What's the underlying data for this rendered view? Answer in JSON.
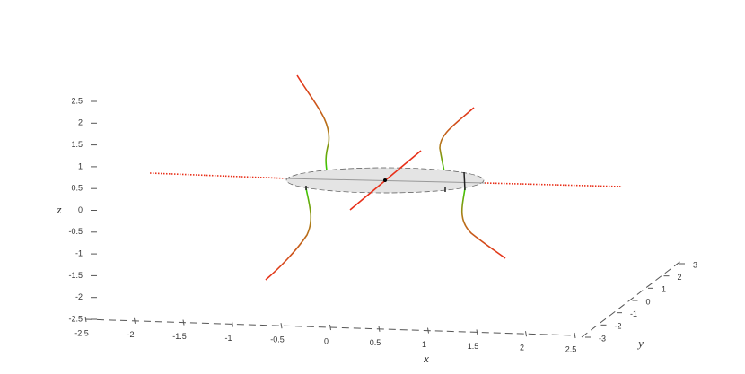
{
  "chart_data": {
    "type": "line3d",
    "xlabel": "x",
    "ylabel": "y",
    "zlabel": "z",
    "xlim": [
      -2.5,
      2.5
    ],
    "xticks": [
      -2.5,
      -2,
      -1.5,
      -1,
      -0.5,
      0,
      0.5,
      1,
      1.5,
      2,
      2.5
    ],
    "ylim": [
      -3,
      3
    ],
    "yticks": [
      -3,
      -2,
      -1,
      0,
      1,
      2,
      3
    ],
    "zlim": [
      -2.5,
      2.5
    ],
    "zticks": [
      -2.5,
      -2,
      -1.5,
      -1,
      -0.5,
      0,
      0.5,
      1,
      1.5,
      2,
      2.5
    ]
  }
}
